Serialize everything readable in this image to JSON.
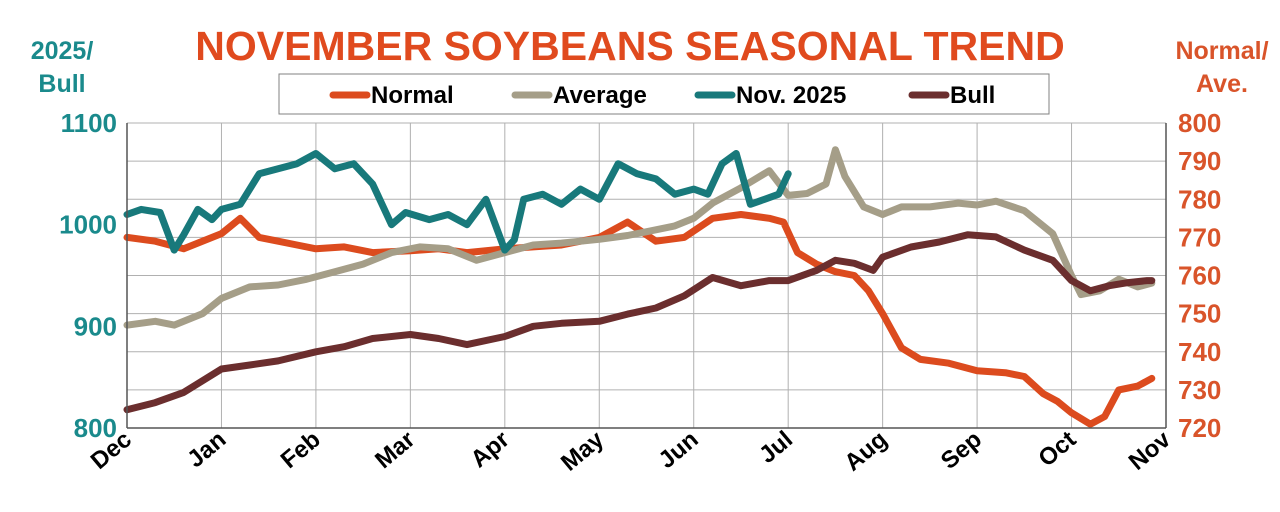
{
  "chart_data": {
    "type": "line",
    "title": "NOVEMBER SOYBEANS  SEASONAL TREND",
    "y_left_label": [
      "2025/",
      "Bull"
    ],
    "y_right_label": [
      "Normal/",
      "Ave."
    ],
    "x_ticks": [
      "Dec",
      "Jan",
      "Feb",
      "Mar",
      "Apr",
      "May",
      "Jun",
      "Jul",
      "Aug",
      "Sep",
      "Oct",
      "Nov"
    ],
    "y_left_ticks": [
      "800",
      "900",
      "1000",
      "1100"
    ],
    "y_right_ticks": [
      "720",
      "730",
      "740",
      "750",
      "760",
      "770",
      "780",
      "790",
      "800"
    ],
    "y_left_range": [
      800,
      1100
    ],
    "y_right_range": [
      720,
      800
    ],
    "x_range": [
      0,
      11
    ],
    "grid": true,
    "legend_position": "top",
    "colors": {
      "title": "#e04a1e",
      "left_axis": "#1a8a8c",
      "right_axis": "#d9542a",
      "grid": "#b0b0b0",
      "axis": "#555555"
    },
    "series": [
      {
        "name": "Normal",
        "axis": "right",
        "color": "#dc4b1e",
        "x": [
          0,
          0.3,
          0.6,
          1.0,
          1.2,
          1.4,
          1.6,
          1.8,
          2.0,
          2.3,
          2.6,
          3.0,
          3.3,
          3.6,
          4.0,
          4.3,
          4.6,
          5.0,
          5.3,
          5.6,
          5.9,
          6.2,
          6.5,
          6.8,
          6.95,
          7.1,
          7.3,
          7.5,
          7.7,
          7.85,
          8.0,
          8.2,
          8.4,
          8.7,
          9.0,
          9.3,
          9.5,
          9.7,
          9.85,
          10.0,
          10.2,
          10.35,
          10.5,
          10.7,
          10.85
        ],
        "values": [
          770,
          769,
          767,
          771,
          775,
          770,
          769,
          768,
          767,
          767.5,
          766,
          766.5,
          767,
          766,
          767,
          767.5,
          768,
          770,
          774,
          769,
          770,
          775,
          776,
          775,
          774,
          766,
          763,
          761,
          760,
          756,
          750,
          741,
          738,
          737,
          735,
          734.5,
          733.5,
          729,
          727,
          724,
          721,
          723,
          730,
          731,
          733
        ]
      },
      {
        "name": "Average",
        "axis": "right",
        "color": "#a59e88",
        "x": [
          0,
          0.3,
          0.5,
          0.8,
          1.0,
          1.3,
          1.6,
          1.9,
          2.2,
          2.5,
          2.8,
          3.1,
          3.4,
          3.7,
          4.0,
          4.3,
          4.6,
          5.0,
          5.3,
          5.6,
          5.8,
          6.0,
          6.2,
          6.5,
          6.8,
          7.0,
          7.2,
          7.4,
          7.5,
          7.6,
          7.8,
          8.0,
          8.2,
          8.5,
          8.8,
          9.0,
          9.2,
          9.5,
          9.8,
          10.0,
          10.1,
          10.3,
          10.5,
          10.7,
          10.85
        ],
        "values": [
          747,
          748,
          747,
          750,
          754,
          757,
          757.5,
          759,
          761,
          763,
          766,
          767.5,
          767,
          764,
          766,
          768,
          768.5,
          769.5,
          770.5,
          772,
          773,
          775,
          779,
          783,
          787.5,
          781,
          781.5,
          784,
          793,
          786,
          778,
          776,
          778,
          778,
          779,
          778.5,
          779.5,
          777,
          771,
          760,
          755,
          756,
          759,
          757,
          758
        ]
      },
      {
        "name": "Nov. 2025",
        "axis": "left",
        "color": "#18797b",
        "x": [
          0,
          0.15,
          0.35,
          0.5,
          0.6,
          0.75,
          0.9,
          1.0,
          1.2,
          1.4,
          1.6,
          1.8,
          2.0,
          2.2,
          2.4,
          2.6,
          2.8,
          2.95,
          3.2,
          3.4,
          3.6,
          3.8,
          4.0,
          4.1,
          4.2,
          4.4,
          4.6,
          4.8,
          5.0,
          5.2,
          5.4,
          5.6,
          5.8,
          6.0,
          6.15,
          6.3,
          6.45,
          6.6,
          6.75,
          6.9,
          7.0
        ],
        "values": [
          1010,
          1015,
          1012,
          975,
          990,
          1015,
          1005,
          1015,
          1020,
          1050,
          1055,
          1060,
          1070,
          1055,
          1060,
          1040,
          1000,
          1012,
          1005,
          1010,
          1000,
          1025,
          975,
          985,
          1025,
          1030,
          1020,
          1035,
          1025,
          1060,
          1050,
          1045,
          1030,
          1035,
          1030,
          1060,
          1070,
          1020,
          1025,
          1030,
          1050
        ]
      },
      {
        "name": "Bull",
        "axis": "left",
        "color": "#6b2e2e",
        "x": [
          0,
          0.3,
          0.6,
          1.0,
          1.3,
          1.6,
          2.0,
          2.3,
          2.6,
          3.0,
          3.3,
          3.6,
          4.0,
          4.3,
          4.6,
          5.0,
          5.3,
          5.6,
          5.9,
          6.2,
          6.5,
          6.8,
          7.0,
          7.3,
          7.5,
          7.7,
          7.9,
          8.0,
          8.3,
          8.6,
          8.9,
          9.2,
          9.5,
          9.8,
          10.0,
          10.2,
          10.4,
          10.6,
          10.8,
          10.85
        ],
        "values": [
          818,
          825,
          835,
          858,
          862,
          866,
          875,
          880,
          888,
          892,
          888,
          882,
          890,
          900,
          903,
          905,
          912,
          918,
          930,
          948,
          940,
          945,
          945,
          955,
          965,
          962,
          955,
          968,
          978,
          983,
          990,
          988,
          975,
          965,
          945,
          935,
          940,
          943,
          945,
          945
        ]
      }
    ]
  }
}
